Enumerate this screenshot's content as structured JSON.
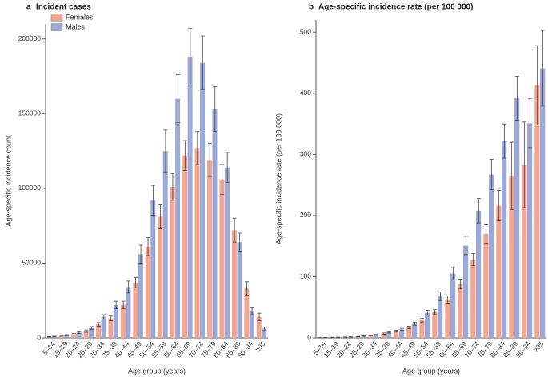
{
  "chart_data": [
    {
      "type": "bar",
      "panel": "a",
      "title": "Incident cases",
      "y_label": "Age-specific incidence count",
      "x_label": "Age group (years)",
      "categories": [
        "5–14",
        "15–19",
        "20–24",
        "25–29",
        "30–34",
        "35–39",
        "40–44",
        "45–49",
        "50–54",
        "55–59",
        "60–64",
        "65–69",
        "70–74",
        "75–79",
        "80–84",
        "85–89",
        "90–94",
        "≥95"
      ],
      "series": [
        {
          "name": "Females",
          "color": "#f4a590",
          "values": [
            700,
            1500,
            2500,
            4500,
            9000,
            13000,
            22000,
            37000,
            61000,
            81000,
            101000,
            122000,
            127000,
            119000,
            106000,
            72000,
            33000,
            14000
          ],
          "errors": [
            150,
            300,
            500,
            800,
            1200,
            1500,
            2500,
            3500,
            6000,
            8000,
            9000,
            10000,
            11000,
            11000,
            10000,
            8000,
            4500,
            2500
          ]
        },
        {
          "name": "Males",
          "color": "#9ba9d9",
          "values": [
            900,
            1800,
            3500,
            6500,
            14000,
            22000,
            34000,
            56000,
            92000,
            125000,
            160000,
            188000,
            184000,
            153000,
            114000,
            64000,
            18000,
            6000
          ],
          "errors": [
            200,
            300,
            600,
            1000,
            1500,
            2500,
            4000,
            6000,
            10000,
            14000,
            16000,
            19000,
            18000,
            15000,
            10000,
            6000,
            2500,
            1200
          ]
        }
      ],
      "ylim": [
        0,
        210000
      ],
      "yticks": [
        0,
        50000,
        100000,
        150000,
        200000
      ],
      "legend": "top-left"
    },
    {
      "type": "bar",
      "panel": "b",
      "title": "Age-specific incidence rate (per 100 000)",
      "y_label": "Age-specific incidence rate (per 100 000)",
      "x_label": "Age group (years)",
      "categories": [
        "5–14",
        "15–19",
        "20–24",
        "25–29",
        "30–34",
        "35–39",
        "40–44",
        "45–49",
        "50–54",
        "55–59",
        "60–64",
        "65–69",
        "70–74",
        "75–79",
        "80–84",
        "85–89",
        "90–94",
        "≥95"
      ],
      "series": [
        {
          "name": "Females",
          "color": "#f4a590",
          "values": [
            0.4,
            0.8,
            1.2,
            2,
            4,
            7,
            11,
            17,
            29,
            42,
            63,
            88,
            128,
            170,
            216,
            265,
            283,
            413
          ],
          "errors": [
            0.1,
            0.2,
            0.3,
            0.4,
            0.6,
            1,
            1.5,
            2,
            3,
            4,
            6,
            8,
            10,
            15,
            25,
            55,
            70,
            65
          ]
        },
        {
          "name": "Males",
          "color": "#9ba9d9",
          "values": [
            0.5,
            1,
            1.5,
            3,
            5,
            9,
            14,
            23,
            41,
            68,
            105,
            151,
            208,
            267,
            322,
            392,
            351,
            441
          ],
          "errors": [
            0.1,
            0.2,
            0.3,
            0.5,
            0.7,
            1,
            1.5,
            2.5,
            4,
            7,
            10,
            15,
            20,
            25,
            28,
            36,
            40,
            62
          ]
        }
      ],
      "ylim": [
        0,
        520
      ],
      "yticks": [
        0,
        100,
        200,
        300,
        400,
        500
      ]
    }
  ]
}
